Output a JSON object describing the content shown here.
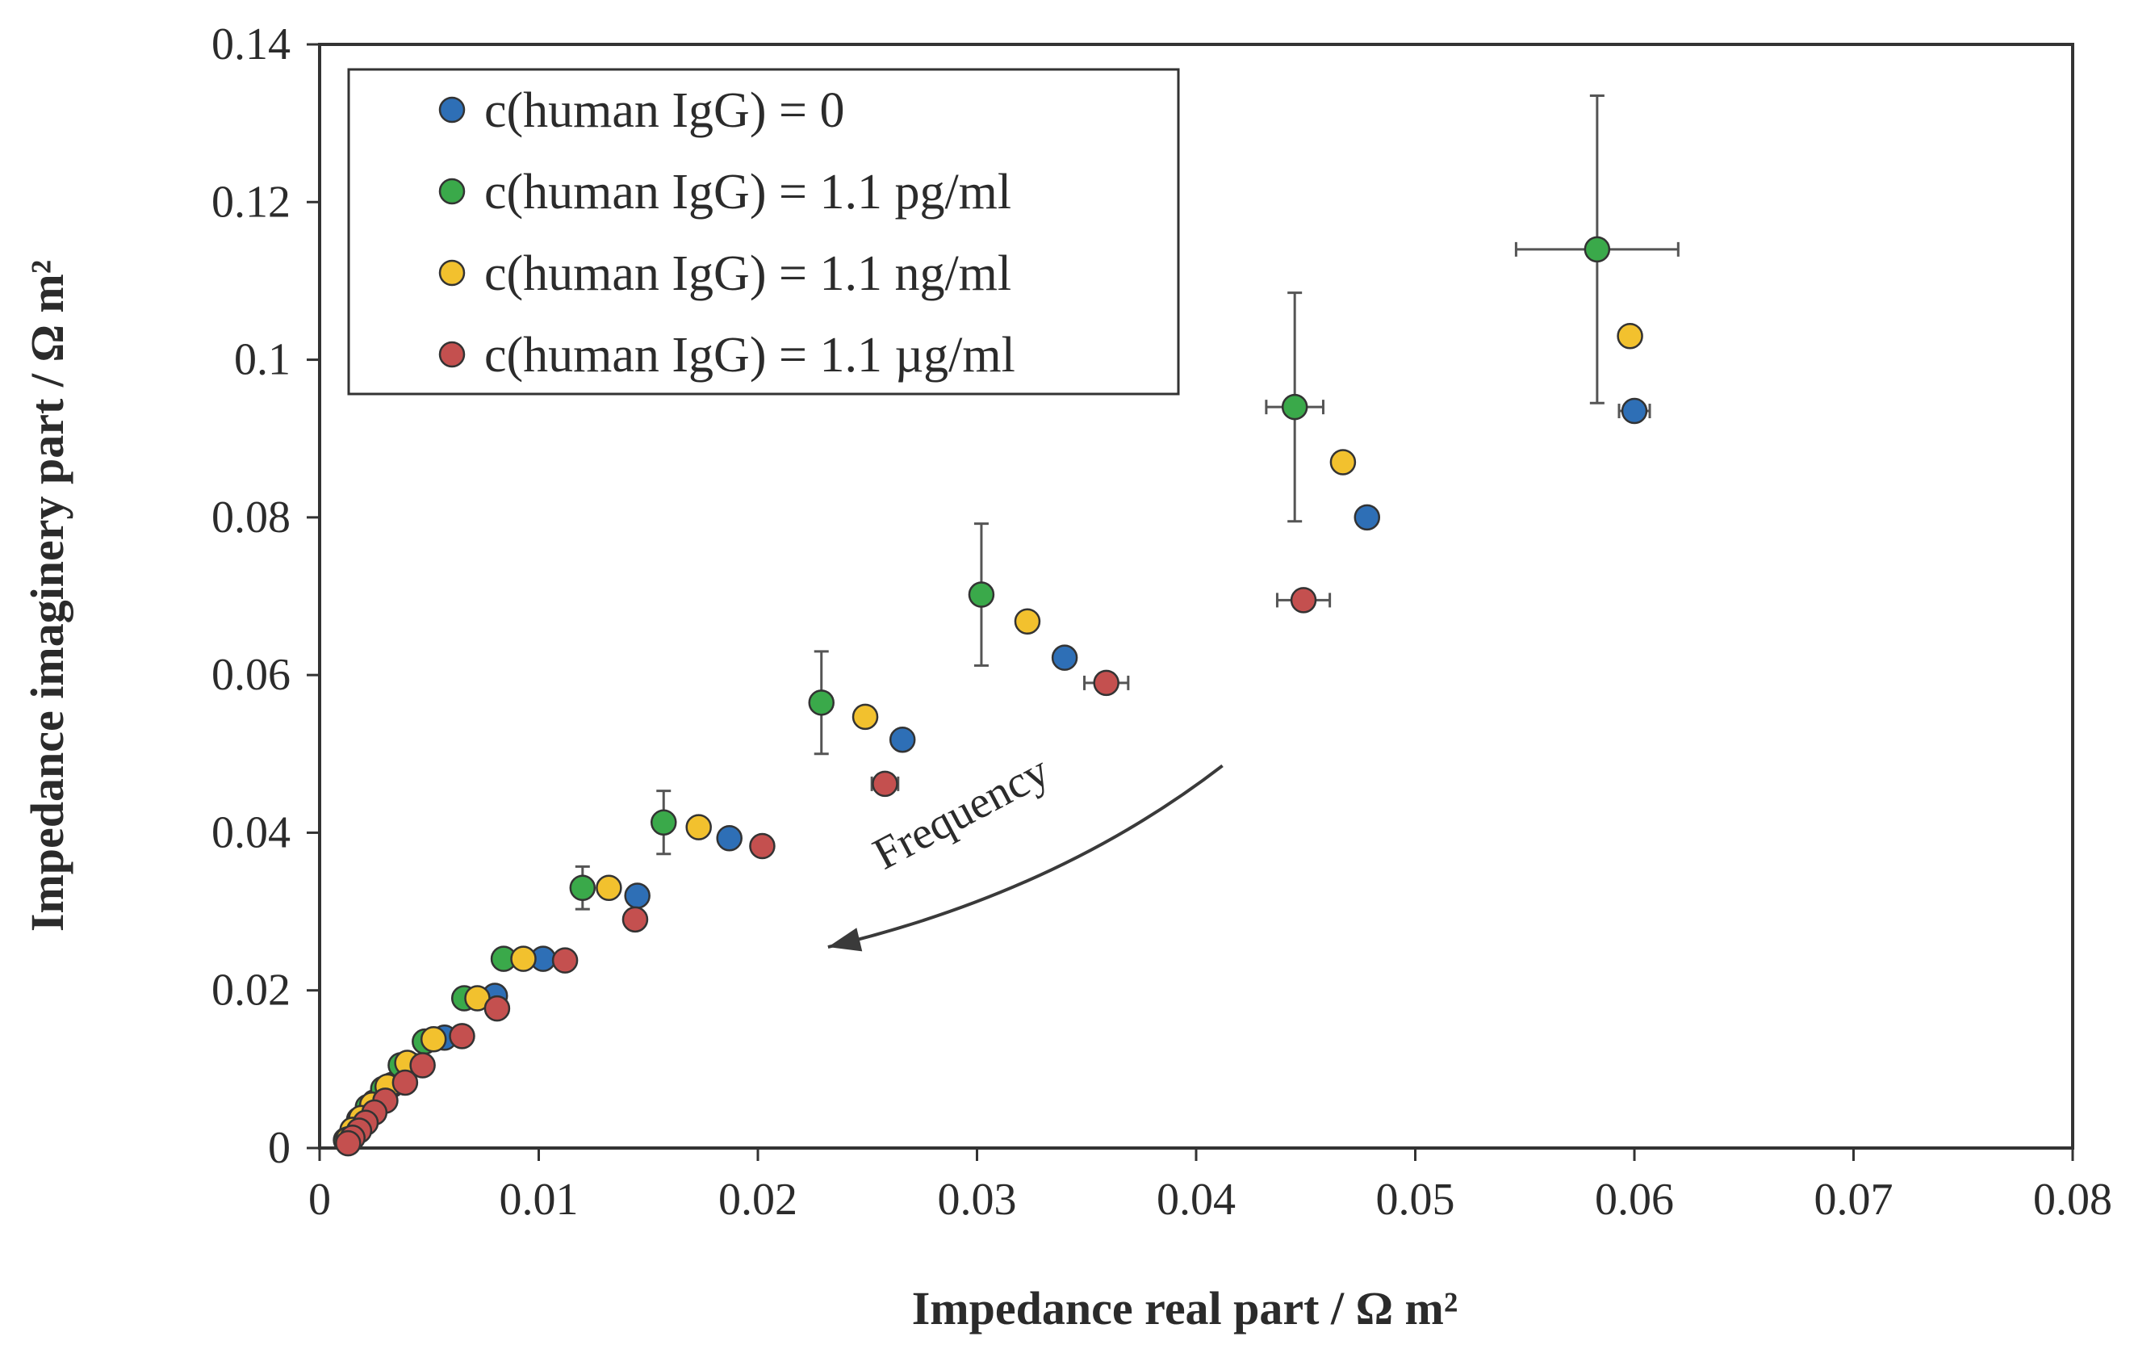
{
  "chart_data": {
    "type": "scatter",
    "title": "",
    "xlabel": "Impedance real part / Ω m²",
    "ylabel": "Impedance imaginery part / Ω m²",
    "xlim": [
      0,
      0.08
    ],
    "ylim": [
      0,
      0.14
    ],
    "xticks": [
      0,
      0.01,
      0.02,
      0.03,
      0.04,
      0.05,
      0.06,
      0.07,
      0.08
    ],
    "yticks": [
      0,
      0.02,
      0.04,
      0.06,
      0.08,
      0.1,
      0.12,
      0.14
    ],
    "xtick_labels": [
      "0",
      "0.01",
      "0.02",
      "0.03",
      "0.04",
      "0.05",
      "0.06",
      "0.07",
      "0.08"
    ],
    "ytick_labels": [
      "0",
      "0.02",
      "0.04",
      "0.06",
      "0.08",
      "0.1",
      "0.12",
      "0.14"
    ],
    "grid": false,
    "legend_position": "top-left",
    "annotation": {
      "text": "Frequency",
      "arrow_from": [
        0.0412,
        0.0485
      ],
      "arrow_to": [
        0.0232,
        0.0255
      ]
    },
    "series": [
      {
        "name": "c(human IgG) = 0",
        "color": "#2e6fb6",
        "points": [
          {
            "x": 0.06,
            "y": 0.0935,
            "xerr": 0.0007
          },
          {
            "x": 0.0478,
            "y": 0.08
          },
          {
            "x": 0.034,
            "y": 0.0622
          },
          {
            "x": 0.0266,
            "y": 0.0518
          },
          {
            "x": 0.0187,
            "y": 0.0393
          },
          {
            "x": 0.0145,
            "y": 0.032
          },
          {
            "x": 0.0102,
            "y": 0.024
          },
          {
            "x": 0.008,
            "y": 0.0193
          },
          {
            "x": 0.0057,
            "y": 0.014
          },
          {
            "x": 0.0042,
            "y": 0.0105
          },
          {
            "x": 0.0033,
            "y": 0.008
          },
          {
            "x": 0.0025,
            "y": 0.0058
          },
          {
            "x": 0.002,
            "y": 0.004
          },
          {
            "x": 0.0016,
            "y": 0.0025
          },
          {
            "x": 0.0013,
            "y": 0.0012
          }
        ]
      },
      {
        "name": "c(human IgG) = 1.1 pg/ml",
        "color": "#3aa94a",
        "points": [
          {
            "x": 0.0583,
            "y": 0.114,
            "xerr": 0.0037,
            "yerr": 0.0195
          },
          {
            "x": 0.0445,
            "y": 0.094,
            "xerr": 0.0013,
            "yerr": 0.0145
          },
          {
            "x": 0.0302,
            "y": 0.0702,
            "yerr": 0.009
          },
          {
            "x": 0.0229,
            "y": 0.0565,
            "yerr": 0.0065
          },
          {
            "x": 0.0157,
            "y": 0.0413,
            "yerr": 0.004
          },
          {
            "x": 0.012,
            "y": 0.033,
            "yerr": 0.0027
          },
          {
            "x": 0.0084,
            "y": 0.024
          },
          {
            "x": 0.0066,
            "y": 0.019
          },
          {
            "x": 0.0048,
            "y": 0.0135
          },
          {
            "x": 0.0037,
            "y": 0.0105
          },
          {
            "x": 0.0029,
            "y": 0.0075
          },
          {
            "x": 0.0022,
            "y": 0.0052
          },
          {
            "x": 0.0018,
            "y": 0.0036
          },
          {
            "x": 0.0015,
            "y": 0.0022
          },
          {
            "x": 0.0012,
            "y": 0.001
          }
        ]
      },
      {
        "name": "c(human IgG) = 1.1 ng/ml",
        "color": "#f2c12e",
        "points": [
          {
            "x": 0.0598,
            "y": 0.103
          },
          {
            "x": 0.0467,
            "y": 0.087
          },
          {
            "x": 0.0323,
            "y": 0.0668
          },
          {
            "x": 0.0249,
            "y": 0.0547
          },
          {
            "x": 0.0173,
            "y": 0.0407
          },
          {
            "x": 0.0132,
            "y": 0.033
          },
          {
            "x": 0.0093,
            "y": 0.024
          },
          {
            "x": 0.0072,
            "y": 0.019
          },
          {
            "x": 0.0052,
            "y": 0.0138
          },
          {
            "x": 0.004,
            "y": 0.0108
          },
          {
            "x": 0.0031,
            "y": 0.0078
          },
          {
            "x": 0.0024,
            "y": 0.0055
          },
          {
            "x": 0.0019,
            "y": 0.0038
          },
          {
            "x": 0.0015,
            "y": 0.0023
          },
          {
            "x": 0.0013,
            "y": 0.0011
          }
        ]
      },
      {
        "name": "c(human IgG) = 1.1 µg/ml",
        "color": "#c4504f",
        "points": [
          {
            "x": 0.0449,
            "y": 0.0695,
            "xerr": 0.0012
          },
          {
            "x": 0.0359,
            "y": 0.059,
            "xerr": 0.001
          },
          {
            "x": 0.0258,
            "y": 0.0462,
            "xerr": 0.0006
          },
          {
            "x": 0.0202,
            "y": 0.0383
          },
          {
            "x": 0.0144,
            "y": 0.029
          },
          {
            "x": 0.0112,
            "y": 0.0238
          },
          {
            "x": 0.0081,
            "y": 0.0177
          },
          {
            "x": 0.0065,
            "y": 0.0142
          },
          {
            "x": 0.0047,
            "y": 0.0105
          },
          {
            "x": 0.0039,
            "y": 0.0083
          },
          {
            "x": 0.003,
            "y": 0.006
          },
          {
            "x": 0.0025,
            "y": 0.0045
          },
          {
            "x": 0.0021,
            "y": 0.0032
          },
          {
            "x": 0.0018,
            "y": 0.0022
          },
          {
            "x": 0.0015,
            "y": 0.0013
          },
          {
            "x": 0.0013,
            "y": 0.0006
          }
        ]
      }
    ]
  }
}
